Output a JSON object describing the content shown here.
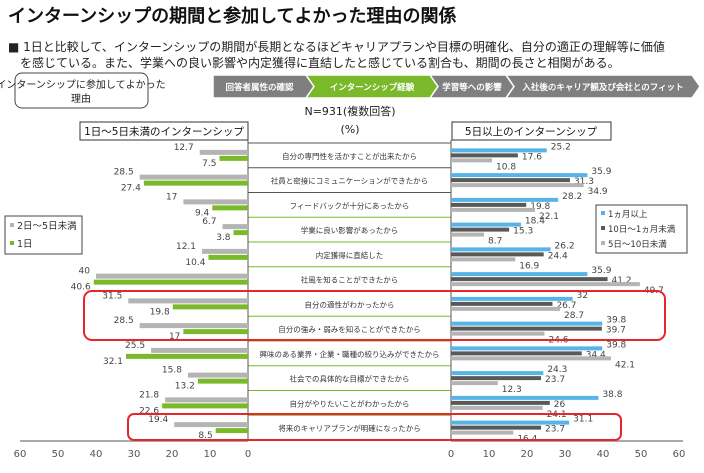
{
  "title": "インターンシップの期間と参加してよかった理由の関係",
  "summary": [
    "■ 1日と比較して、インターンシップの期間が長期となるほどキャリアプランや目標の明確化、自分の適正の理解等に価値",
    "を感じている。また、学業への良い影響や内定獲得に直結したと感じている割合も、期間の長さと相関がある。"
  ],
  "section_box": [
    "インターンシップに参加してよかった",
    "理由"
  ],
  "nav_steps": [
    {
      "label": "回答者属性の確認",
      "active": false
    },
    {
      "label": "インターンシップ経験",
      "active": true
    },
    {
      "label": "学習等への影響",
      "active": false
    },
    {
      "label": "入社後のキャリア観及び会社とのフィット",
      "active": false
    }
  ],
  "colors": {
    "green": "#7ab929",
    "blue": "#56b4e6",
    "dark_gray": "#595959",
    "light_gray": "#b4b4b4",
    "highlight": "#e8262a",
    "nav_gray": "#7f7f7f"
  },
  "chart_data": {
    "type": "bar",
    "orientation": "horizontal-butterfly",
    "sample_note": "N=931(複数回答)",
    "unit": "(%)",
    "categories": [
      "自分の専門性を活かすことが出来たから",
      "社員と密接にコミュニケーションができたから",
      "フィードバックが十分にあったから",
      "学業に良い影響があったから",
      "内定獲得に直結した",
      "社風を知ることができたから",
      "自分の適性がわかったから",
      "自分の強み・弱みを知ることができたから",
      "興味のある業界・企業・職種の絞り込みができたから",
      "社会での具体的な目標ができたから",
      "自分がやりたいことがわかったから",
      "将来のキャリアプランが明確になったから"
    ],
    "highlighted_categories": [
      6,
      7,
      11
    ],
    "left": {
      "title": "1日～5日未満のインターンシップ",
      "xlim": [
        0,
        60
      ],
      "ticks": [
        "60",
        "50",
        "40",
        "30",
        "20",
        "10",
        "0"
      ],
      "legend_position": "left",
      "series": [
        {
          "name": "2日～5日未満",
          "color": "#b4b4b4",
          "values": [
            12.7,
            28.5,
            17.0,
            6.7,
            12.1,
            40.0,
            31.5,
            28.5,
            25.5,
            15.8,
            21.8,
            19.4
          ]
        },
        {
          "name": "1日",
          "color": "#7ab929",
          "values": [
            7.5,
            27.4,
            9.4,
            3.8,
            10.4,
            40.6,
            19.8,
            17.0,
            32.1,
            13.2,
            22.6,
            8.5
          ]
        }
      ]
    },
    "right": {
      "title": "5日以上のインターンシップ",
      "xlim": [
        0,
        60
      ],
      "ticks": [
        "0",
        "10",
        "20",
        "30",
        "40",
        "50",
        "60"
      ],
      "legend_position": "right",
      "series": [
        {
          "name": "1ヵ月以上",
          "color": "#56b4e6",
          "values": [
            25.2,
            35.9,
            28.2,
            18.4,
            26.2,
            35.9,
            32.0,
            39.8,
            39.8,
            24.3,
            38.8,
            31.1
          ]
        },
        {
          "name": "10日～1ヵ月未満",
          "color": "#595959",
          "values": [
            17.6,
            31.3,
            19.8,
            15.3,
            24.4,
            41.2,
            26.7,
            39.7,
            34.4,
            23.7,
            26.0,
            23.7
          ]
        },
        {
          "name": "5日～10日未満",
          "color": "#b4b4b4",
          "values": [
            10.8,
            34.9,
            22.1,
            8.7,
            16.9,
            49.7,
            28.7,
            24.6,
            42.1,
            12.3,
            24.1,
            16.4
          ]
        }
      ]
    }
  }
}
